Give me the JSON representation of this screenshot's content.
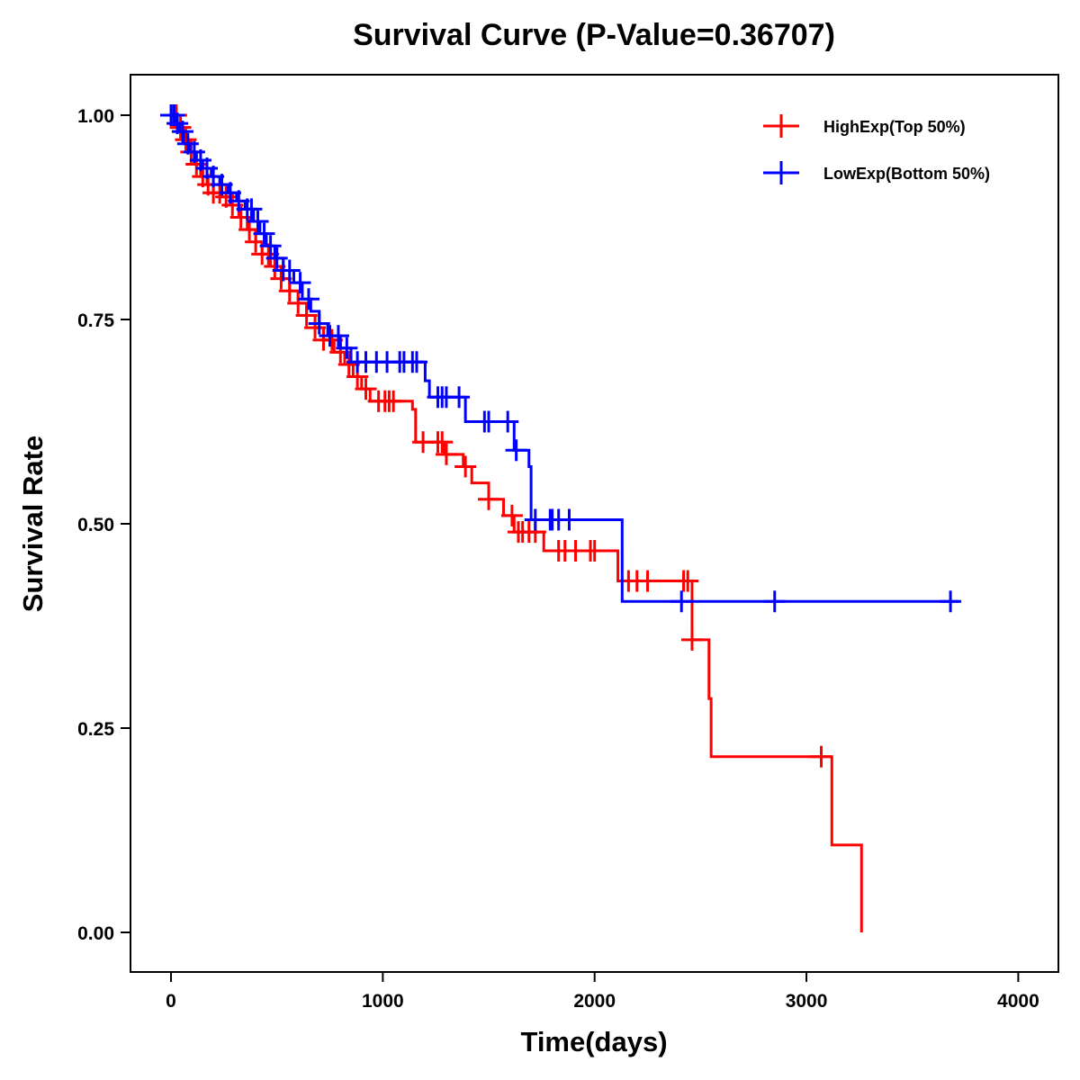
{
  "chart_data": {
    "type": "line",
    "subtype": "kaplan-meier-step",
    "title": "Survival Curve (P-Value=0.36707)",
    "p_value": 0.36707,
    "xlabel": "Time(days)",
    "ylabel": "Survival Rate",
    "xlim": [
      -200,
      4200
    ],
    "ylim": [
      -0.05,
      1.05
    ],
    "x_ticks": [
      0,
      1000,
      2000,
      3000,
      4000
    ],
    "x_tick_labels": [
      "0",
      "1000",
      "2000",
      "3000",
      "4000"
    ],
    "y_ticks": [
      0,
      0.25,
      0.5,
      0.75,
      1.0
    ],
    "y_tick_labels": [
      "0.00",
      "0.25",
      "0.50",
      "0.75",
      "1.00"
    ],
    "grid": false,
    "legend_position": "top-right",
    "series": [
      {
        "name": "HighExp(Top 50%)",
        "color": "#FF0000",
        "steps": [
          [
            0,
            1.0
          ],
          [
            30,
            0.985
          ],
          [
            60,
            0.97
          ],
          [
            90,
            0.955
          ],
          [
            110,
            0.94
          ],
          [
            140,
            0.925
          ],
          [
            170,
            0.915
          ],
          [
            200,
            0.905
          ],
          [
            240,
            0.9
          ],
          [
            280,
            0.89
          ],
          [
            320,
            0.875
          ],
          [
            360,
            0.86
          ],
          [
            400,
            0.845
          ],
          [
            430,
            0.83
          ],
          [
            470,
            0.815
          ],
          [
            520,
            0.8
          ],
          [
            560,
            0.785
          ],
          [
            600,
            0.77
          ],
          [
            640,
            0.755
          ],
          [
            680,
            0.74
          ],
          [
            720,
            0.725
          ],
          [
            770,
            0.71
          ],
          [
            820,
            0.695
          ],
          [
            860,
            0.68
          ],
          [
            900,
            0.665
          ],
          [
            940,
            0.65
          ],
          [
            1140,
            0.64
          ],
          [
            1155,
            0.6
          ],
          [
            1290,
            0.585
          ],
          [
            1380,
            0.57
          ],
          [
            1420,
            0.55
          ],
          [
            1500,
            0.53
          ],
          [
            1570,
            0.51
          ],
          [
            1620,
            0.49
          ],
          [
            1760,
            0.467
          ],
          [
            2110,
            0.43
          ],
          [
            2460,
            0.358
          ],
          [
            2540,
            0.286
          ],
          [
            2550,
            0.215
          ],
          [
            3120,
            0.107
          ],
          [
            3260,
            0.0
          ]
        ],
        "end_x": 3260,
        "censor_times": [
          10,
          25,
          45,
          70,
          95,
          120,
          150,
          175,
          200,
          230,
          260,
          290,
          330,
          370,
          400,
          430,
          460,
          490,
          520,
          560,
          600,
          640,
          680,
          720,
          760,
          800,
          840,
          880,
          920,
          980,
          1010,
          1030,
          1050,
          1190,
          1260,
          1280,
          1300,
          1390,
          1500,
          1610,
          1640,
          1660,
          1690,
          1720,
          1830,
          1860,
          1910,
          1980,
          2000,
          2160,
          2200,
          2250,
          2420,
          2440,
          2460,
          3070
        ]
      },
      {
        "name": "LowExp(Bottom 50%)",
        "color": "#0000FF",
        "steps": [
          [
            0,
            1.0
          ],
          [
            20,
            0.99
          ],
          [
            40,
            0.98
          ],
          [
            60,
            0.965
          ],
          [
            90,
            0.955
          ],
          [
            120,
            0.945
          ],
          [
            150,
            0.935
          ],
          [
            190,
            0.925
          ],
          [
            230,
            0.915
          ],
          [
            270,
            0.905
          ],
          [
            310,
            0.895
          ],
          [
            350,
            0.885
          ],
          [
            390,
            0.87
          ],
          [
            420,
            0.855
          ],
          [
            450,
            0.84
          ],
          [
            490,
            0.825
          ],
          [
            530,
            0.81
          ],
          [
            580,
            0.795
          ],
          [
            620,
            0.775
          ],
          [
            660,
            0.76
          ],
          [
            700,
            0.745
          ],
          [
            740,
            0.73
          ],
          [
            800,
            0.715
          ],
          [
            850,
            0.698
          ],
          [
            1200,
            0.675
          ],
          [
            1220,
            0.655
          ],
          [
            1390,
            0.625
          ],
          [
            1620,
            0.59
          ],
          [
            1690,
            0.57
          ],
          [
            1700,
            0.505
          ],
          [
            2130,
            0.405
          ]
        ],
        "end_x": 3720,
        "censor_times": [
          0,
          15,
          30,
          55,
          80,
          110,
          140,
          170,
          200,
          240,
          280,
          320,
          360,
          380,
          410,
          440,
          470,
          500,
          530,
          560,
          610,
          650,
          700,
          750,
          790,
          830,
          880,
          920,
          970,
          1020,
          1080,
          1100,
          1140,
          1160,
          1260,
          1280,
          1300,
          1360,
          1480,
          1500,
          1590,
          1630,
          1720,
          1790,
          1800,
          1830,
          1880,
          2410,
          2850,
          3680
        ]
      }
    ]
  }
}
